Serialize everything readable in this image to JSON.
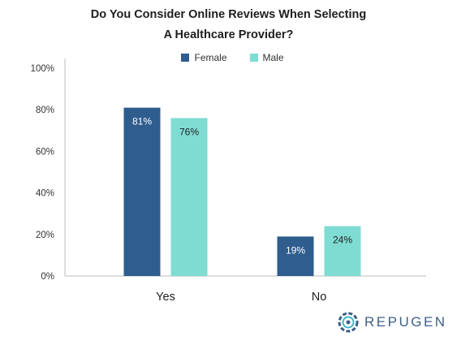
{
  "chart_data": {
    "type": "bar",
    "title": [
      "Do You Consider Online Reviews When Selecting",
      "A Healthcare Provider?"
    ],
    "categories": [
      "Yes",
      "No"
    ],
    "series": [
      {
        "name": "Female",
        "values": [
          81,
          19
        ],
        "labels": [
          "81%",
          "19%"
        ],
        "color": "#2e5d8e",
        "label_color": "#ffffff"
      },
      {
        "name": "Male",
        "values": [
          76,
          24
        ],
        "labels": [
          "76%",
          "24%"
        ],
        "color": "#7fdcd3",
        "label_color": "#222222"
      }
    ],
    "yticks": [
      "0%",
      "20%",
      "40%",
      "60%",
      "80%",
      "100%"
    ],
    "ytick_values": [
      0,
      20,
      40,
      60,
      80,
      100
    ],
    "ylim": [
      0,
      100
    ],
    "xlabel": "",
    "ylabel": "",
    "grid": false,
    "legend_position": "top-center"
  },
  "brand": {
    "name": "REPUGEN",
    "icon": "repugen-logo-icon",
    "color": "#3c5f86"
  }
}
